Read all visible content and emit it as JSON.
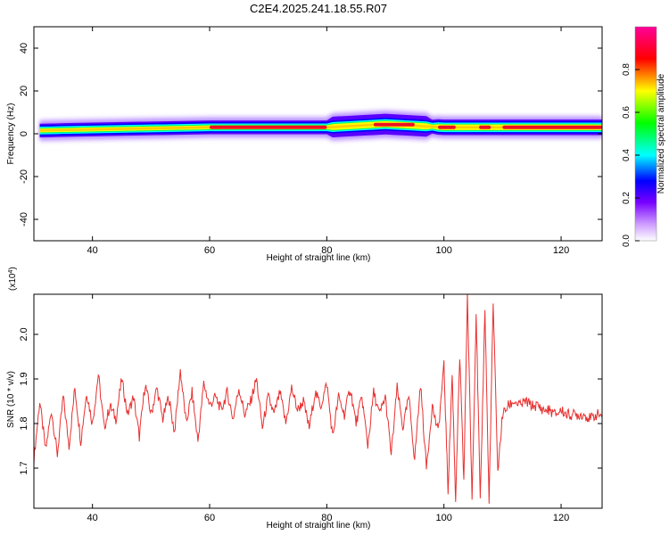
{
  "figure": {
    "title": "C2E4.2025.241.18.55.R07"
  },
  "chart_data": [
    {
      "type": "heatmap",
      "xlabel": "Height of straight line (km)",
      "ylabel": "Frequency (Hz)",
      "xlim": [
        30,
        127
      ],
      "ylim": [
        -50,
        50
      ],
      "xticks": [
        40,
        60,
        80,
        100,
        120
      ],
      "yticks": [
        -40,
        -20,
        0,
        20,
        40
      ],
      "colorbar": {
        "label": "Normalized spectral amplitude",
        "range": [
          0,
          1
        ],
        "ticks": [
          0.0,
          0.2,
          0.4,
          0.6,
          0.8
        ],
        "tick_labels": [
          "0.0",
          "0.2",
          "0.4",
          "0.6",
          "0.8"
        ],
        "colormap": [
          "#ffffff",
          "#8800ff",
          "#0000ff",
          "#00ffff",
          "#00ff00",
          "#ffff00",
          "#ff0000",
          "#ff00aa"
        ]
      },
      "band_center_hz": [
        {
          "x": 31,
          "y": 1.5
        },
        {
          "x": 40,
          "y": 2
        },
        {
          "x": 50,
          "y": 2.5
        },
        {
          "x": 60,
          "y": 3
        },
        {
          "x": 70,
          "y": 3
        },
        {
          "x": 80,
          "y": 3
        },
        {
          "x": 90,
          "y": 4.5
        },
        {
          "x": 100,
          "y": 3
        },
        {
          "x": 110,
          "y": 3
        },
        {
          "x": 127,
          "y": 3
        }
      ],
      "amplitude_peaks": [
        {
          "x_from": 88,
          "x_to": 95,
          "amplitude": 0.95
        },
        {
          "x_from": 99,
          "x_to": 102,
          "amplitude": 0.95
        },
        {
          "x_from": 106,
          "x_to": 108,
          "amplitude": 0.95
        },
        {
          "x_from": 110,
          "x_to": 127,
          "amplitude": 0.9
        },
        {
          "x_from": 60,
          "x_to": 80,
          "amplitude": 0.9
        }
      ]
    },
    {
      "type": "line",
      "xlabel": "Height of straight line (km)",
      "ylabel": "SNR (10 * v/v)",
      "y_multiplier": "(x10",
      "y_multiplier_exp": "4",
      "y_multiplier_close": ")",
      "xlim": [
        30,
        127
      ],
      "ylim": [
        1.61,
        2.09
      ],
      "xticks": [
        40,
        60,
        80,
        100,
        120
      ],
      "yticks": [
        1.7,
        1.8,
        1.9,
        2.0
      ],
      "ytick_labels": [
        "1.7",
        "1.8",
        "1.9",
        "2.0"
      ],
      "series": [
        {
          "color": "#e83030",
          "x": [
            30,
            31,
            32,
            33,
            34,
            35,
            36,
            37,
            38,
            39,
            40,
            41,
            42,
            43,
            44,
            45,
            46,
            47,
            48,
            49,
            50,
            51,
            52,
            53,
            54,
            55,
            56,
            57,
            58,
            59,
            60,
            61,
            62,
            63,
            64,
            65,
            66,
            67,
            68,
            69,
            70,
            71,
            72,
            73,
            74,
            75,
            76,
            77,
            78,
            79,
            80,
            81,
            82,
            83,
            84,
            85,
            86,
            87,
            88,
            89,
            90,
            91,
            92,
            93,
            94,
            95,
            96,
            97,
            98,
            99,
            100,
            100.7,
            101.4,
            102,
            102.7,
            103.4,
            104,
            104.8,
            105.5,
            106.2,
            107,
            107.7,
            108.4,
            109.2,
            110,
            111,
            112,
            113,
            114,
            115,
            116,
            117,
            118,
            119,
            120,
            121,
            122,
            123,
            124,
            125,
            126,
            127
          ],
          "y": [
            1.72,
            1.85,
            1.74,
            1.83,
            1.73,
            1.86,
            1.75,
            1.88,
            1.76,
            1.87,
            1.8,
            1.91,
            1.79,
            1.84,
            1.81,
            1.9,
            1.82,
            1.86,
            1.77,
            1.89,
            1.82,
            1.88,
            1.81,
            1.86,
            1.78,
            1.92,
            1.8,
            1.87,
            1.76,
            1.89,
            1.84,
            1.86,
            1.83,
            1.87,
            1.81,
            1.88,
            1.82,
            1.85,
            1.9,
            1.79,
            1.86,
            1.82,
            1.87,
            1.8,
            1.88,
            1.83,
            1.85,
            1.79,
            1.87,
            1.84,
            1.89,
            1.77,
            1.86,
            1.82,
            1.88,
            1.8,
            1.86,
            1.75,
            1.87,
            1.82,
            1.86,
            1.73,
            1.88,
            1.79,
            1.86,
            1.72,
            1.89,
            1.7,
            1.84,
            1.78,
            1.93,
            1.65,
            1.91,
            1.63,
            1.95,
            1.67,
            2.09,
            1.63,
            2.05,
            1.62,
            2.06,
            1.62,
            2.07,
            1.69,
            1.82,
            1.84,
            1.85,
            1.84,
            1.85,
            1.84,
            1.84,
            1.83,
            1.83,
            1.82,
            1.83,
            1.82,
            1.82,
            1.82,
            1.82,
            1.81,
            1.82,
            1.82
          ]
        }
      ]
    }
  ]
}
